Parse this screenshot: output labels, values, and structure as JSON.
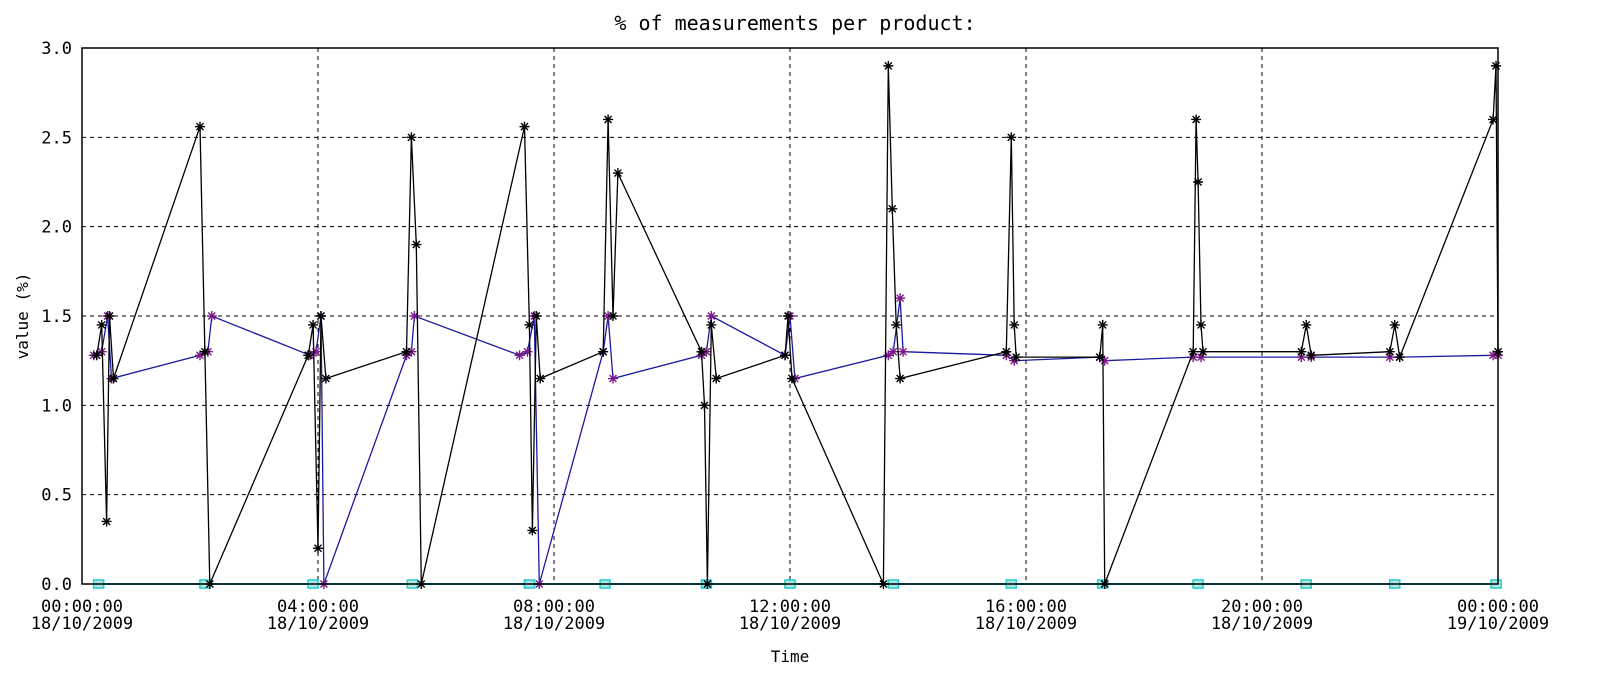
{
  "chart_data": {
    "type": "line",
    "title": "% of measurements per product:",
    "xlabel": "Time",
    "ylabel": "value (%)",
    "ylim": [
      0.0,
      3.0
    ],
    "yticks": [
      "0.0",
      "0.5",
      "1.0",
      "1.5",
      "2.0",
      "2.5",
      "3.0"
    ],
    "xlim": [
      "2009-10-18T00:00",
      "2009-10-19T00:00"
    ],
    "xticks": [
      {
        "time": "00:00:00",
        "date": "18/10/2009"
      },
      {
        "time": "04:00:00",
        "date": "18/10/2009"
      },
      {
        "time": "08:00:00",
        "date": "18/10/2009"
      },
      {
        "time": "12:00:00",
        "date": "18/10/2009"
      },
      {
        "time": "16:00:00",
        "date": "18/10/2009"
      },
      {
        "time": "20:00:00",
        "date": "18/10/2009"
      },
      {
        "time": "00:00:00",
        "date": "19/10/2009"
      }
    ],
    "grid": true,
    "series": [
      {
        "color": "#000000",
        "marker": "star",
        "points": [
          [
            "2009-10-18T00:15",
            1.28
          ],
          [
            "2009-10-18T00:20",
            1.45
          ],
          [
            "2009-10-18T00:25",
            0.35
          ],
          [
            "2009-10-18T00:28",
            1.5
          ],
          [
            "2009-10-18T00:32",
            1.15
          ],
          [
            "2009-10-18T02:00",
            2.56
          ],
          [
            "2009-10-18T02:05",
            1.3
          ],
          [
            "2009-10-18T02:10",
            0.0
          ],
          [
            "2009-10-18T03:50",
            1.28
          ],
          [
            "2009-10-18T03:55",
            1.45
          ],
          [
            "2009-10-18T04:00",
            0.2
          ],
          [
            "2009-10-18T04:03",
            1.5
          ],
          [
            "2009-10-18T04:08",
            1.15
          ],
          [
            "2009-10-18T05:30",
            1.3
          ],
          [
            "2009-10-18T05:35",
            2.5
          ],
          [
            "2009-10-18T05:40",
            1.9
          ],
          [
            "2009-10-18T05:45",
            0.0
          ],
          [
            "2009-10-18T07:30",
            2.56
          ],
          [
            "2009-10-18T07:35",
            1.45
          ],
          [
            "2009-10-18T07:38",
            0.3
          ],
          [
            "2009-10-18T07:42",
            1.5
          ],
          [
            "2009-10-18T07:46",
            1.15
          ],
          [
            "2009-10-18T08:50",
            1.3
          ],
          [
            "2009-10-18T08:55",
            2.6
          ],
          [
            "2009-10-18T09:00",
            1.5
          ],
          [
            "2009-10-18T09:05",
            2.3
          ],
          [
            "2009-10-18T10:30",
            1.3
          ],
          [
            "2009-10-18T10:33",
            1.0
          ],
          [
            "2009-10-18T10:36",
            0.0
          ],
          [
            "2009-10-18T10:40",
            1.45
          ],
          [
            "2009-10-18T10:45",
            1.15
          ],
          [
            "2009-10-18T11:55",
            1.28
          ],
          [
            "2009-10-18T11:58",
            1.5
          ],
          [
            "2009-10-18T12:02",
            1.15
          ],
          [
            "2009-10-18T13:35",
            0.0
          ],
          [
            "2009-10-18T13:40",
            2.9
          ],
          [
            "2009-10-18T13:44",
            2.1
          ],
          [
            "2009-10-18T13:48",
            1.45
          ],
          [
            "2009-10-18T13:52",
            1.15
          ],
          [
            "2009-10-18T15:40",
            1.3
          ],
          [
            "2009-10-18T15:45",
            2.5
          ],
          [
            "2009-10-18T15:48",
            1.45
          ],
          [
            "2009-10-18T15:50",
            1.27
          ],
          [
            "2009-10-18T17:15",
            1.27
          ],
          [
            "2009-10-18T17:18",
            1.45
          ],
          [
            "2009-10-18T17:20",
            0.0
          ],
          [
            "2009-10-18T18:50",
            1.3
          ],
          [
            "2009-10-18T18:53",
            2.6
          ],
          [
            "2009-10-18T18:55",
            2.25
          ],
          [
            "2009-10-18T18:58",
            1.45
          ],
          [
            "2009-10-18T19:00",
            1.3
          ],
          [
            "2009-10-18T20:40",
            1.3
          ],
          [
            "2009-10-18T20:45",
            1.45
          ],
          [
            "2009-10-18T20:50",
            1.28
          ],
          [
            "2009-10-18T22:10",
            1.3
          ],
          [
            "2009-10-18T22:15",
            1.45
          ],
          [
            "2009-10-18T22:20",
            1.27
          ],
          [
            "2009-10-18T23:55",
            2.6
          ],
          [
            "2009-10-18T23:58",
            2.9
          ],
          [
            "2009-10-19T00:00",
            1.3
          ]
        ]
      },
      {
        "color": "#1a1aa0",
        "marker": "star",
        "points": [
          [
            "2009-10-18T00:12",
            1.28
          ],
          [
            "2009-10-18T00:20",
            1.3
          ],
          [
            "2009-10-18T00:26",
            1.5
          ],
          [
            "2009-10-18T00:30",
            1.15
          ],
          [
            "2009-10-18T02:00",
            1.28
          ],
          [
            "2009-10-18T02:08",
            1.3
          ],
          [
            "2009-10-18T02:12",
            1.5
          ],
          [
            "2009-10-18T03:52",
            1.28
          ],
          [
            "2009-10-18T03:58",
            1.3
          ],
          [
            "2009-10-18T04:03",
            1.5
          ],
          [
            "2009-10-18T04:06",
            0.0
          ],
          [
            "2009-10-18T05:30",
            1.28
          ],
          [
            "2009-10-18T05:35",
            1.3
          ],
          [
            "2009-10-18T05:38",
            1.5
          ],
          [
            "2009-10-18T07:25",
            1.28
          ],
          [
            "2009-10-18T07:33",
            1.3
          ],
          [
            "2009-10-18T07:40",
            1.5
          ],
          [
            "2009-10-18T07:45",
            0.0
          ],
          [
            "2009-10-18T08:50",
            1.3
          ],
          [
            "2009-10-18T08:55",
            1.5
          ],
          [
            "2009-10-18T09:00",
            1.15
          ],
          [
            "2009-10-18T10:30",
            1.28
          ],
          [
            "2009-10-18T10:35",
            1.3
          ],
          [
            "2009-10-18T10:40",
            1.5
          ],
          [
            "2009-10-18T11:55",
            1.28
          ],
          [
            "2009-10-18T12:00",
            1.5
          ],
          [
            "2009-10-18T12:05",
            1.15
          ],
          [
            "2009-10-18T13:40",
            1.28
          ],
          [
            "2009-10-18T13:45",
            1.3
          ],
          [
            "2009-10-18T13:52",
            1.6
          ],
          [
            "2009-10-18T13:55",
            1.3
          ],
          [
            "2009-10-18T15:40",
            1.28
          ],
          [
            "2009-10-18T15:48",
            1.25
          ],
          [
            "2009-10-18T17:15",
            1.27
          ],
          [
            "2009-10-18T17:20",
            1.25
          ],
          [
            "2009-10-18T18:50",
            1.27
          ],
          [
            "2009-10-18T18:58",
            1.27
          ],
          [
            "2009-10-18T20:40",
            1.27
          ],
          [
            "2009-10-18T20:50",
            1.27
          ],
          [
            "2009-10-18T22:10",
            1.27
          ],
          [
            "2009-10-18T22:20",
            1.27
          ],
          [
            "2009-10-18T23:55",
            1.28
          ],
          [
            "2009-10-19T00:00",
            1.28
          ]
        ]
      },
      {
        "color": "#22cccc",
        "marker": "square",
        "points": [
          [
            "2009-10-18T00:17",
            0.0
          ],
          [
            "2009-10-18T02:05",
            0.0
          ],
          [
            "2009-10-18T03:55",
            0.0
          ],
          [
            "2009-10-18T05:36",
            0.0
          ],
          [
            "2009-10-18T07:35",
            0.0
          ],
          [
            "2009-10-18T08:52",
            0.0
          ],
          [
            "2009-10-18T10:35",
            0.0
          ],
          [
            "2009-10-18T12:00",
            0.0
          ],
          [
            "2009-10-18T13:45",
            0.0
          ],
          [
            "2009-10-18T15:45",
            0.0
          ],
          [
            "2009-10-18T17:18",
            0.0
          ],
          [
            "2009-10-18T18:55",
            0.0
          ],
          [
            "2009-10-18T20:45",
            0.0
          ],
          [
            "2009-10-18T22:15",
            0.0
          ],
          [
            "2009-10-18T23:58",
            0.0
          ]
        ]
      }
    ]
  }
}
